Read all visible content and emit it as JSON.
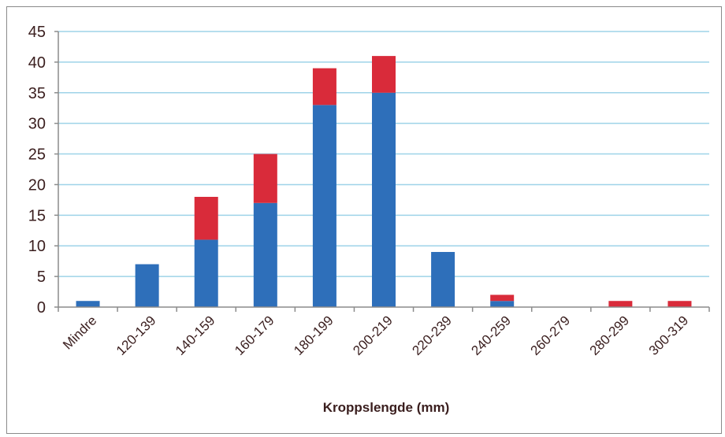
{
  "chart_data": {
    "type": "bar",
    "stacked": true,
    "title": "",
    "xlabel": "Kroppslengde (mm)",
    "ylabel": "",
    "ylim": [
      0,
      45
    ],
    "yticks": [
      0,
      5,
      10,
      15,
      20,
      25,
      30,
      35,
      40,
      45
    ],
    "grid": true,
    "categories": [
      "Mindre",
      "120-139",
      "140-159",
      "160-179",
      "180-199",
      "200-219",
      "220-239",
      "240-259",
      "260-279",
      "280-299",
      "300-319"
    ],
    "series": [
      {
        "values": [
          1,
          7,
          11,
          17,
          33,
          35,
          9,
          1,
          0,
          0,
          0
        ],
        "color": "#2e6fba"
      },
      {
        "values": [
          0,
          0,
          7,
          8,
          6,
          6,
          0,
          1,
          0,
          1,
          1
        ],
        "color": "#d92b3a"
      }
    ]
  }
}
